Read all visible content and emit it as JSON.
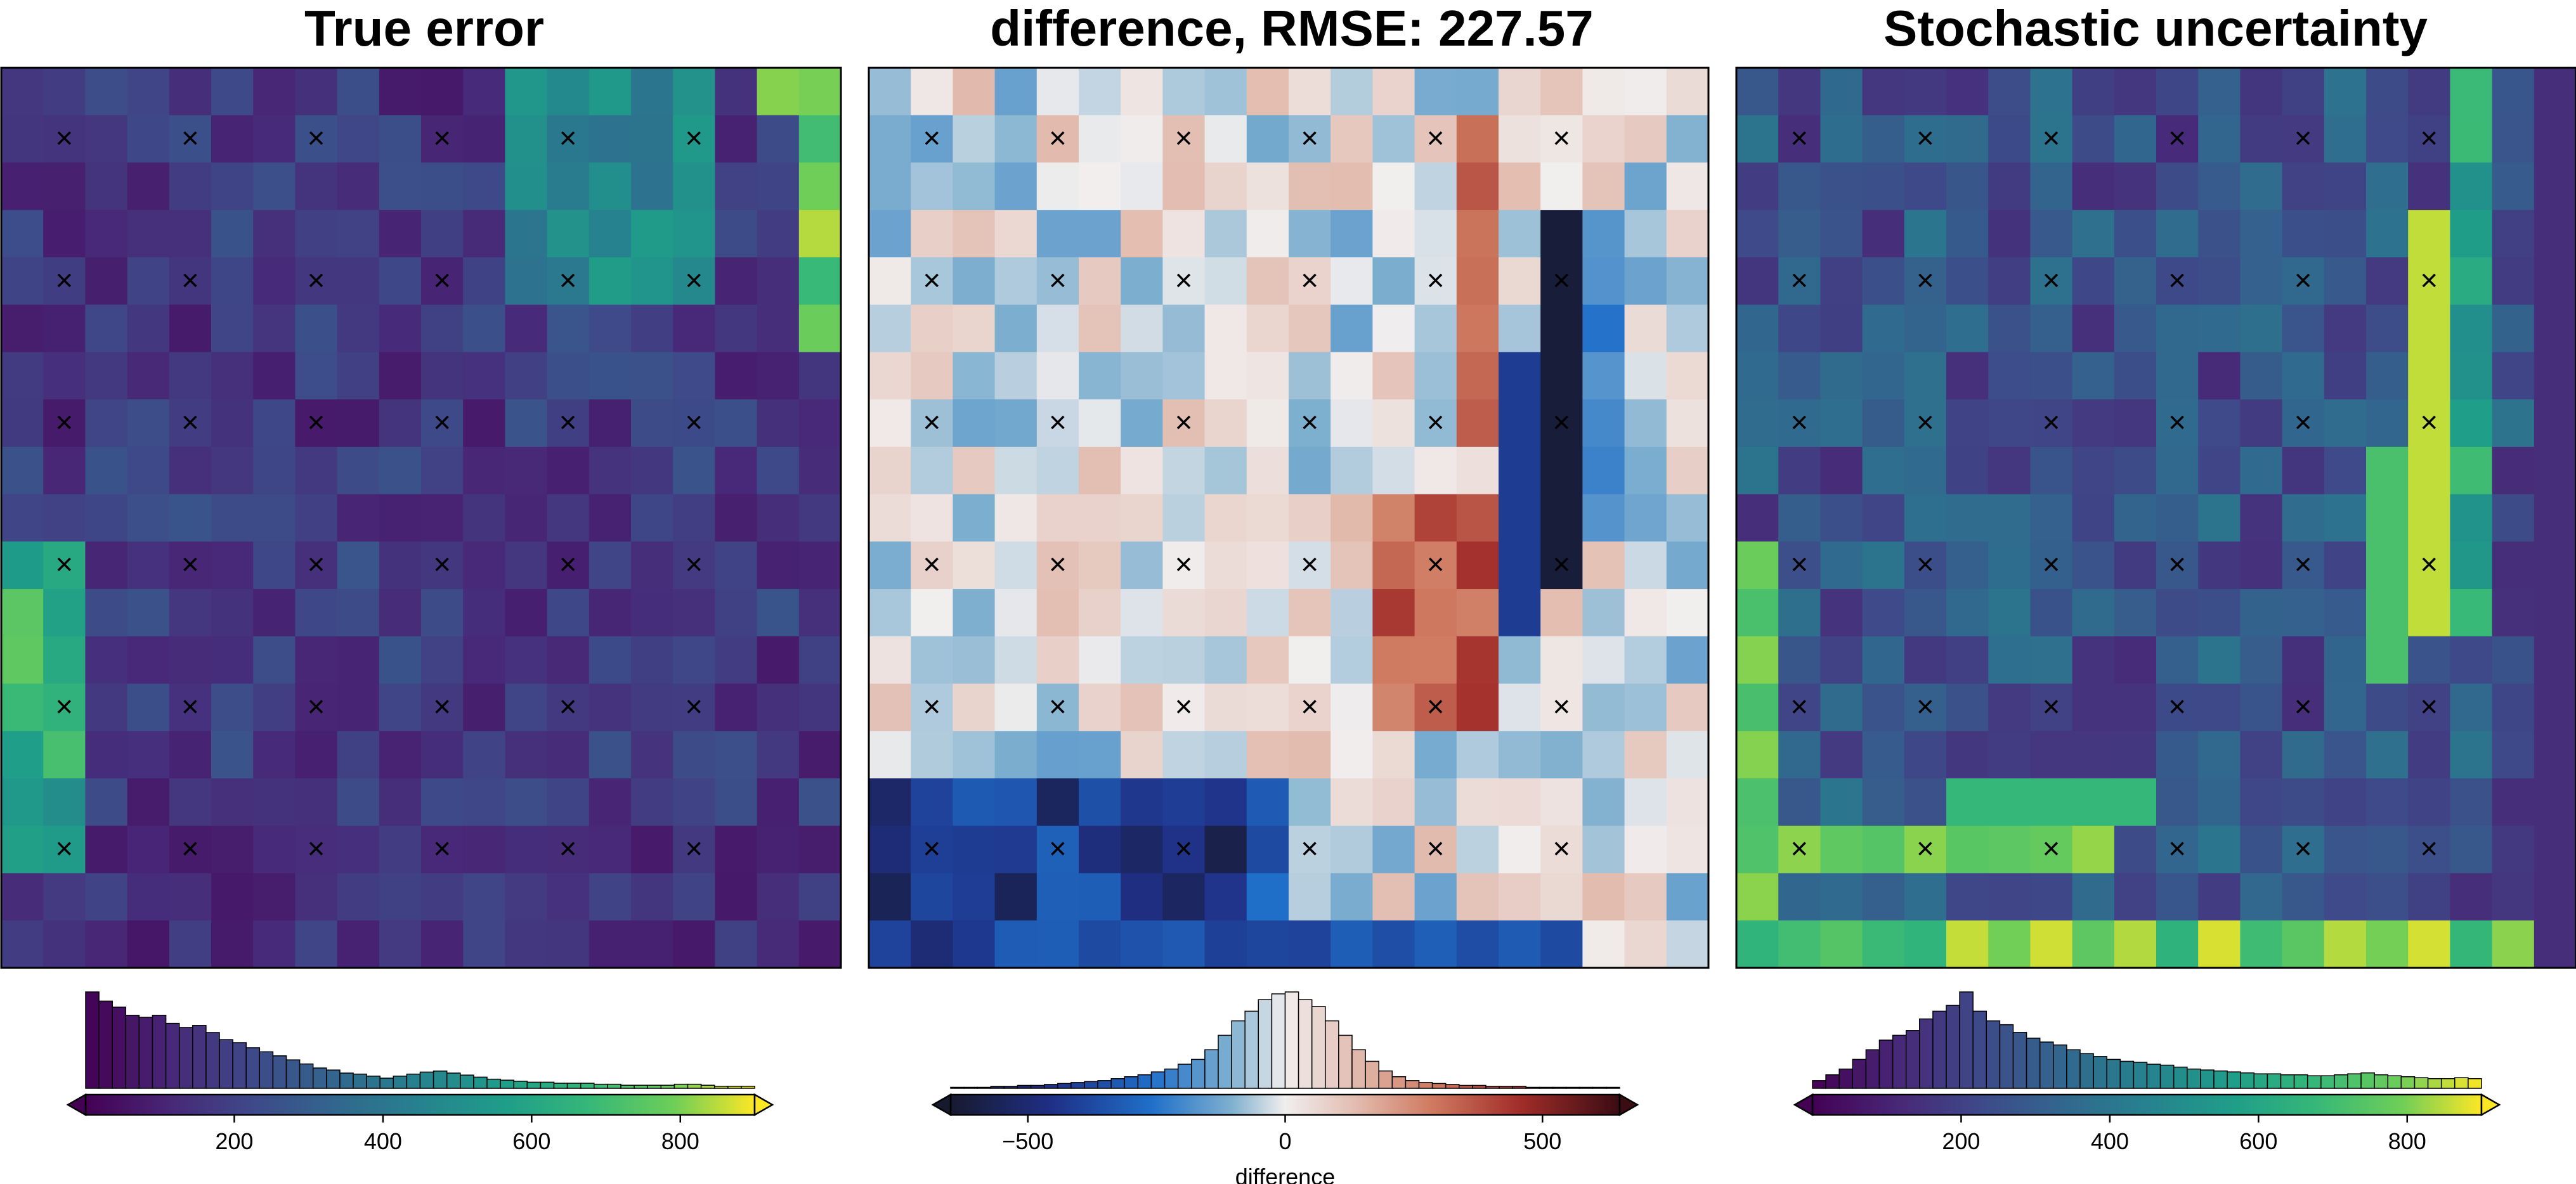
{
  "chart_data": [
    {
      "type": "heatmap",
      "title": "True error",
      "grid": {
        "rows": 19,
        "cols": 20
      },
      "colormap": "viridis",
      "range": [
        0,
        900
      ],
      "markers": {
        "symbol": "×",
        "rows": [
          1,
          4,
          7,
          10,
          13,
          16
        ],
        "cols": [
          1,
          4,
          7,
          10,
          13,
          16
        ]
      },
      "colorbar": {
        "ticks": [
          200,
          400,
          600,
          800
        ],
        "label": "",
        "histogram": [
          95,
          86,
          80,
          72,
          70,
          72,
          64,
          60,
          62,
          55,
          48,
          45,
          40,
          36,
          32,
          28,
          24,
          20,
          18,
          15,
          14,
          12,
          10,
          12,
          14,
          16,
          17,
          15,
          13,
          11,
          9,
          8,
          7,
          6,
          6,
          5,
          5,
          5,
          4,
          4,
          3,
          3,
          3,
          3,
          4,
          4,
          3,
          2,
          2,
          2
        ]
      }
    },
    {
      "type": "heatmap",
      "title": "difference, RMSE: 227.57",
      "grid": {
        "rows": 19,
        "cols": 20
      },
      "colormap": "balance",
      "range": [
        -650,
        650
      ],
      "markers": {
        "symbol": "×",
        "rows": [
          1,
          4,
          7,
          10,
          13,
          16
        ],
        "cols": [
          1,
          4,
          7,
          10,
          13,
          16
        ]
      },
      "colorbar": {
        "ticks": [
          -500,
          0,
          500
        ],
        "label": "difference",
        "histogram": [
          1,
          1,
          1,
          2,
          2,
          3,
          3,
          4,
          5,
          6,
          7,
          8,
          10,
          12,
          14,
          17,
          20,
          25,
          30,
          40,
          55,
          70,
          80,
          92,
          98,
          100,
          92,
          85,
          70,
          55,
          40,
          28,
          18,
          12,
          8,
          6,
          5,
          4,
          3,
          3,
          2,
          2,
          2,
          1,
          1,
          1,
          1,
          1,
          1,
          1
        ]
      }
    },
    {
      "type": "heatmap",
      "title": "Stochastic uncertainty",
      "grid": {
        "rows": 19,
        "cols": 20
      },
      "colormap": "viridis",
      "range": [
        0,
        900
      ],
      "markers": {
        "symbol": "×",
        "rows": [
          1,
          4,
          7,
          10,
          13,
          16
        ],
        "cols": [
          1,
          4,
          7,
          10,
          13,
          16
        ]
      },
      "colorbar": {
        "ticks": [
          200,
          400,
          600,
          800
        ],
        "label": "",
        "histogram": [
          8,
          14,
          20,
          30,
          40,
          50,
          55,
          60,
          72,
          80,
          86,
          100,
          80,
          70,
          66,
          58,
          52,
          48,
          45,
          40,
          36,
          33,
          30,
          28,
          27,
          25,
          24,
          22,
          20,
          19,
          18,
          17,
          16,
          15,
          15,
          14,
          14,
          13,
          13,
          14,
          15,
          16,
          14,
          13,
          12,
          11,
          10,
          10,
          11,
          10
        ]
      }
    }
  ]
}
